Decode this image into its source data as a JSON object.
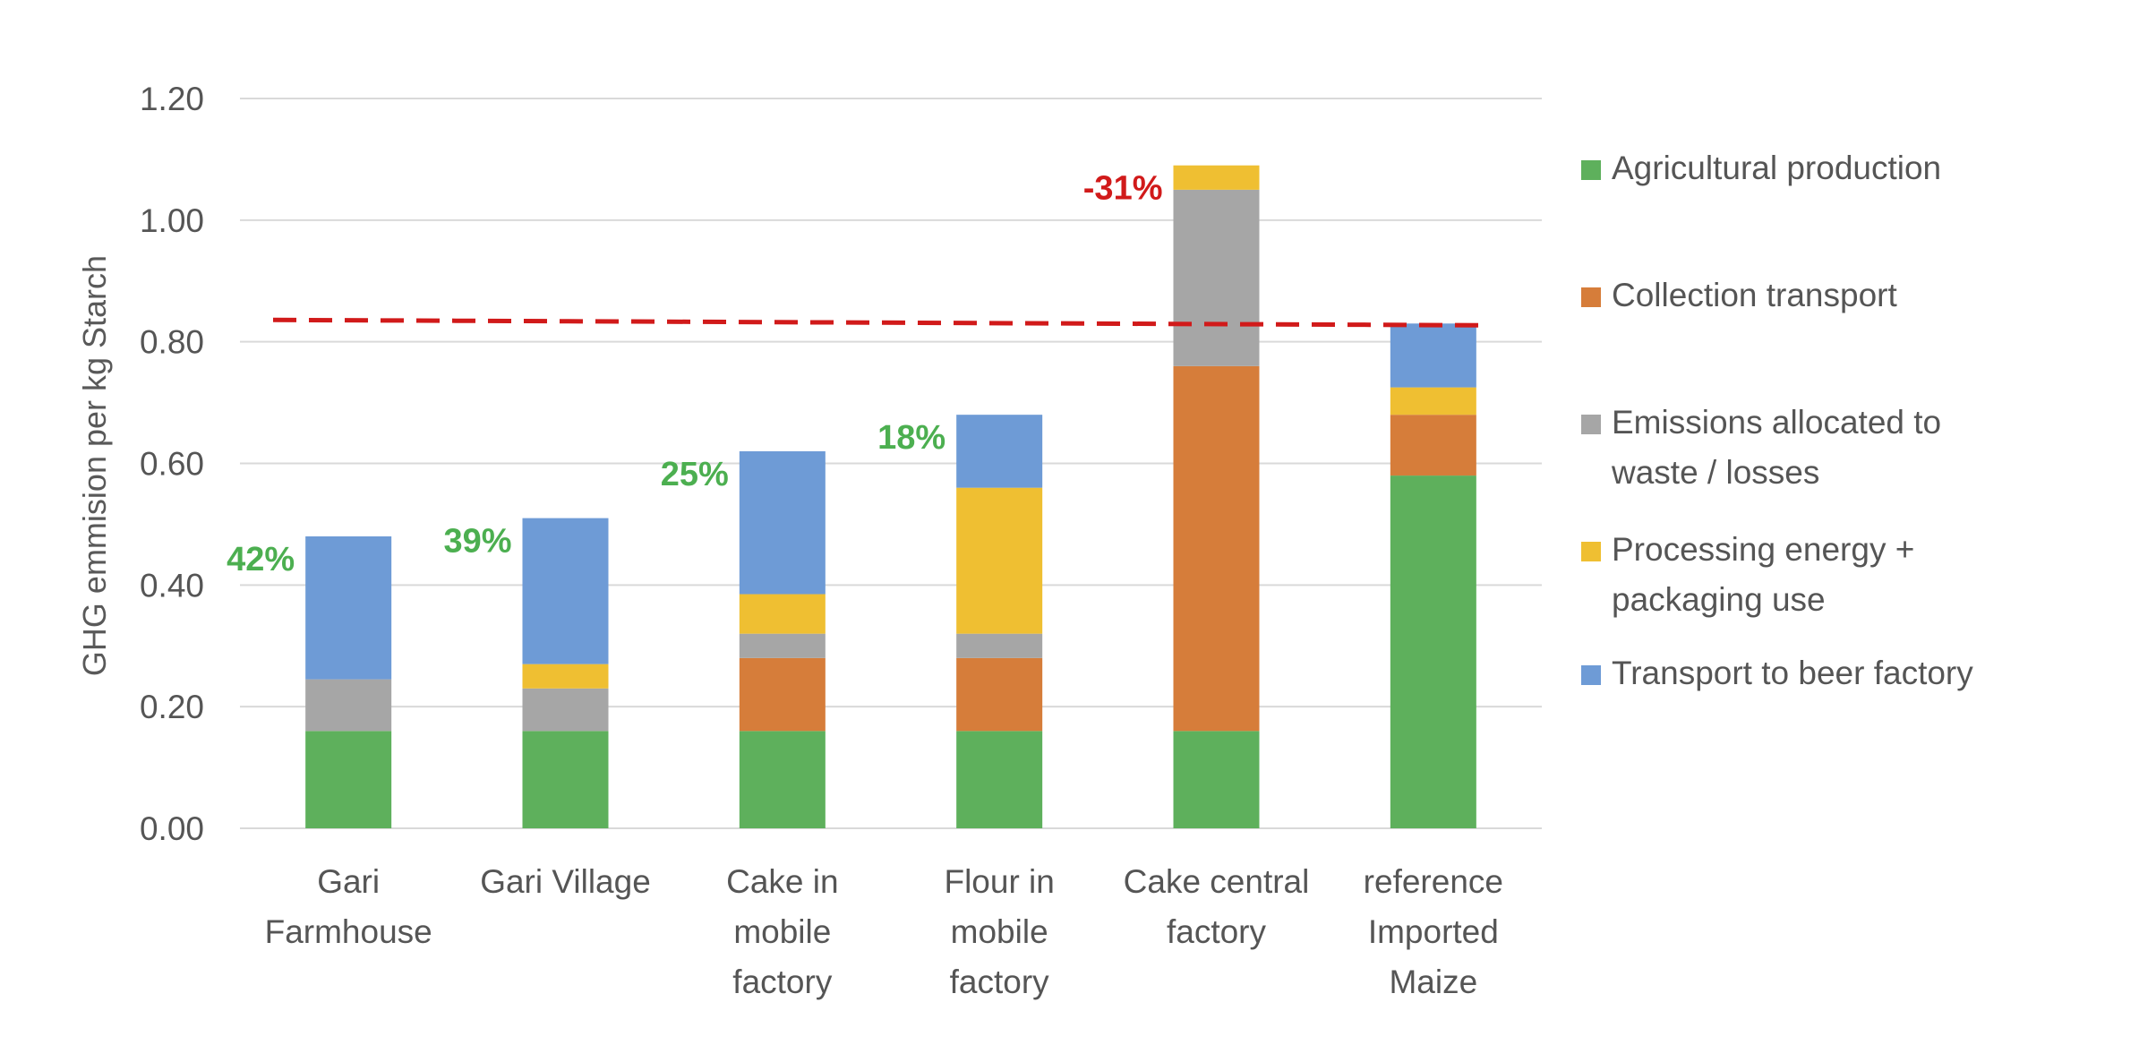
{
  "chart_data": {
    "type": "bar",
    "stacked": true,
    "ylabel": "GHG emmision per kg Starch",
    "xlabel": "",
    "ylim": [
      0,
      1.2
    ],
    "yticks": [
      "0.00",
      "0.20",
      "0.40",
      "0.60",
      "0.80",
      "1.00",
      "1.20"
    ],
    "grid": true,
    "legend_position": "right",
    "categories": [
      [
        "Gari",
        "Farmhouse"
      ],
      [
        "Gari Village"
      ],
      [
        "Cake in",
        "mobile",
        "factory"
      ],
      [
        "Flour in",
        "mobile",
        "factory"
      ],
      [
        "Cake central",
        "factory"
      ],
      [
        "reference",
        "Imported",
        "Maize"
      ]
    ],
    "series": [
      {
        "name": "Agricultural production",
        "legend_lines": [
          "Agricultural production"
        ],
        "color": "#5EB05C",
        "values": [
          0.16,
          0.16,
          0.16,
          0.16,
          0.16,
          0.58
        ]
      },
      {
        "name": "Collection transport",
        "legend_lines": [
          "Collection transport"
        ],
        "color": "#D67D3A",
        "values": [
          0.0,
          0.0,
          0.12,
          0.12,
          0.6,
          0.1
        ]
      },
      {
        "name": "Emissions allocated to waste / losses",
        "legend_lines": [
          "Emissions allocated to",
          "waste / losses"
        ],
        "color": "#A6A6A6",
        "values": [
          0.085,
          0.07,
          0.04,
          0.04,
          0.29,
          0.0
        ]
      },
      {
        "name": "Processing energy + packaging use",
        "legend_lines": [
          "Processing energy +",
          "packaging use"
        ],
        "color": "#EFBF32",
        "values": [
          0.0,
          0.04,
          0.065,
          0.24,
          0.04,
          0.045
        ]
      },
      {
        "name": "Transport to beer factory",
        "legend_lines": [
          "Transport to beer factory"
        ],
        "color": "#6E9BD6",
        "values": [
          0.235,
          0.24,
          0.235,
          0.12,
          0.0,
          0.105
        ]
      }
    ],
    "reference_line": {
      "value": 0.83,
      "color": "#D11A1A",
      "style": "dashed"
    },
    "annotations": [
      {
        "text": "42%",
        "category_index": 0,
        "color": "#4CAF50"
      },
      {
        "text": "39%",
        "category_index": 1,
        "color": "#4CAF50"
      },
      {
        "text": "25%",
        "category_index": 2,
        "color": "#4CAF50"
      },
      {
        "text": "18%",
        "category_index": 3,
        "color": "#4CAF50"
      },
      {
        "text": "-31%",
        "category_index": 4,
        "color": "#D11A1A"
      }
    ]
  }
}
